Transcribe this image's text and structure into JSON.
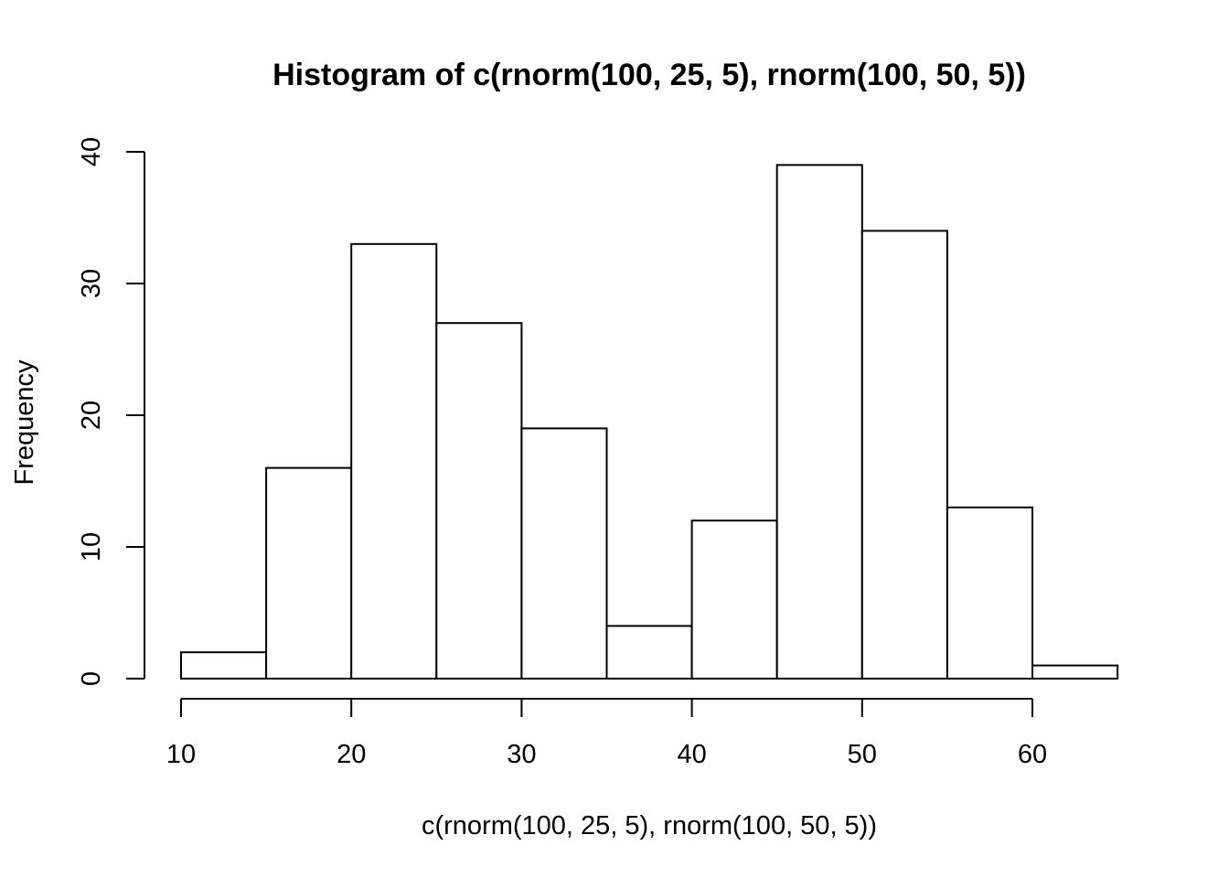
{
  "chart_data": {
    "type": "bar",
    "title": "Histogram of c(rnorm(100, 25, 5), rnorm(100, 50, 5))",
    "xlabel": "c(rnorm(100, 25, 5), rnorm(100, 50, 5))",
    "ylabel": "Frequency",
    "bin_edges": [
      10,
      15,
      20,
      25,
      30,
      35,
      40,
      45,
      50,
      55,
      60,
      65
    ],
    "values": [
      2,
      16,
      33,
      27,
      19,
      4,
      12,
      39,
      34,
      13,
      1
    ],
    "x_ticks": [
      10,
      20,
      30,
      40,
      50,
      60
    ],
    "x_tick_labels": [
      "10",
      "20",
      "30",
      "40",
      "50",
      "60"
    ],
    "y_ticks": [
      0,
      10,
      20,
      30,
      40
    ],
    "y_tick_labels": [
      "0",
      "10",
      "20",
      "30",
      "40"
    ],
    "xlim": [
      10,
      65
    ],
    "ylim": [
      0,
      40
    ],
    "grid": false,
    "legend": "none",
    "bar_fill": "#ffffff",
    "bar_stroke": "#000000"
  }
}
